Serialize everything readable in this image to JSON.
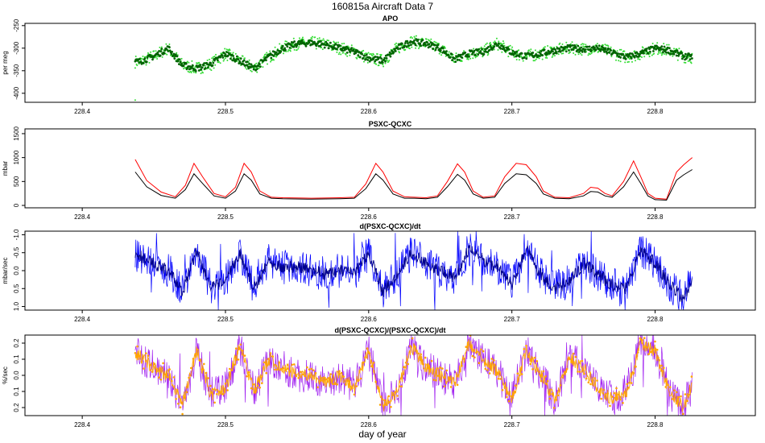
{
  "title": "160815a   Aircraft Data 7",
  "xlabel": "day of year",
  "x_ticks": [
    228.4,
    228.5,
    228.6,
    228.7,
    228.8
  ],
  "x_range": [
    228.36,
    228.87
  ],
  "data_x_range": [
    228.437,
    228.826
  ],
  "colors": {
    "green_light": "#33dd33",
    "green_dark": "#006400",
    "red": "#ff0000",
    "black": "#000000",
    "blue_light": "#0000ff",
    "blue_dark": "#00008b",
    "purple": "#a020f0",
    "orange": "#ffa500"
  },
  "chart_data": [
    {
      "type": "scatter",
      "title": "APO",
      "ylabel": "per meg",
      "ylim": [
        -420,
        -245
      ],
      "y_reversed": false,
      "y_ticks": [
        -400,
        -350,
        -300,
        -250
      ],
      "y_tick_labels": [
        "-400",
        "-350",
        "-300",
        "-250"
      ],
      "grid": false,
      "series": [
        {
          "color": "#33dd33",
          "style": "points",
          "x": [
            228.44,
            228.45,
            228.46,
            228.47,
            228.48,
            228.49,
            228.5,
            228.51,
            228.52,
            228.53,
            228.54,
            228.55,
            228.56,
            228.57,
            228.58,
            228.59,
            228.6,
            228.61,
            228.62,
            228.63,
            228.64,
            228.65,
            228.66,
            228.67,
            228.68,
            228.69,
            228.7,
            228.71,
            228.72,
            228.73,
            228.74,
            228.75,
            228.76,
            228.77,
            228.78,
            228.79,
            228.8,
            228.81,
            228.82,
            228.826
          ],
          "values": [
            -330,
            -318,
            -300,
            -338,
            -345,
            -335,
            -312,
            -328,
            -345,
            -320,
            -300,
            -290,
            -288,
            -292,
            -300,
            -308,
            -322,
            -328,
            -300,
            -285,
            -290,
            -300,
            -325,
            -312,
            -308,
            -290,
            -310,
            -318,
            -312,
            -305,
            -300,
            -302,
            -300,
            -310,
            -320,
            -312,
            -300,
            -305,
            -318,
            -320
          ]
        },
        {
          "color": "#006400",
          "style": "points",
          "x": [
            228.44,
            228.45,
            228.46,
            228.47,
            228.48,
            228.49,
            228.5,
            228.51,
            228.52,
            228.53,
            228.54,
            228.55,
            228.56,
            228.57,
            228.58,
            228.59,
            228.6,
            228.61,
            228.62,
            228.63,
            228.64,
            228.65,
            228.66,
            228.67,
            228.68,
            228.69,
            228.7,
            228.71,
            228.72,
            228.73,
            228.74,
            228.75,
            228.76,
            228.77,
            228.78,
            228.79,
            228.8,
            228.81,
            228.82,
            228.826
          ],
          "values": [
            -330,
            -318,
            -300,
            -338,
            -345,
            -335,
            -312,
            -328,
            -345,
            -320,
            -300,
            -290,
            -288,
            -292,
            -300,
            -308,
            -322,
            -328,
            -300,
            -285,
            -290,
            -300,
            -325,
            -312,
            -308,
            -290,
            -310,
            -318,
            -312,
            -305,
            -300,
            -302,
            -300,
            -310,
            -320,
            -312,
            -300,
            -305,
            -318,
            -320
          ]
        }
      ]
    },
    {
      "type": "line",
      "title": "PSXC-QCXC",
      "ylabel": "mbar",
      "ylim": [
        -50,
        1600
      ],
      "y_reversed": false,
      "y_ticks": [
        0,
        500,
        1000,
        1500
      ],
      "y_tick_labels": [
        "0",
        "500",
        "1000",
        "1500"
      ],
      "grid": false,
      "series": [
        {
          "color": "#ff0000",
          "x": [
            228.437,
            228.445,
            228.455,
            228.465,
            228.472,
            228.478,
            228.484,
            228.492,
            228.5,
            228.507,
            228.513,
            228.518,
            228.524,
            228.532,
            228.54,
            228.56,
            228.58,
            228.59,
            228.598,
            228.605,
            228.61,
            228.617,
            228.625,
            228.632,
            228.64,
            228.648,
            228.655,
            228.662,
            228.667,
            228.673,
            228.68,
            228.688,
            228.695,
            228.703,
            228.71,
            228.717,
            228.722,
            228.73,
            228.74,
            228.75,
            228.755,
            228.76,
            228.765,
            228.77,
            228.778,
            228.785,
            228.79,
            228.795,
            228.8,
            228.808,
            228.815,
            228.82,
            228.826
          ],
          "values": [
            960,
            520,
            280,
            180,
            420,
            880,
            600,
            250,
            180,
            380,
            880,
            700,
            300,
            170,
            160,
            150,
            160,
            170,
            450,
            880,
            700,
            300,
            180,
            170,
            160,
            200,
            500,
            870,
            700,
            300,
            170,
            200,
            600,
            880,
            850,
            600,
            300,
            170,
            160,
            250,
            380,
            360,
            250,
            200,
            500,
            930,
            600,
            250,
            150,
            130,
            700,
            850,
            1000
          ]
        },
        {
          "color": "#000000",
          "x": [
            228.437,
            228.445,
            228.455,
            228.465,
            228.472,
            228.478,
            228.484,
            228.492,
            228.5,
            228.507,
            228.513,
            228.518,
            228.524,
            228.532,
            228.54,
            228.56,
            228.58,
            228.59,
            228.598,
            228.605,
            228.61,
            228.617,
            228.625,
            228.632,
            228.64,
            228.648,
            228.655,
            228.662,
            228.667,
            228.673,
            228.68,
            228.688,
            228.695,
            228.703,
            228.71,
            228.717,
            228.722,
            228.73,
            228.74,
            228.75,
            228.755,
            228.76,
            228.765,
            228.77,
            228.778,
            228.785,
            228.79,
            228.795,
            228.8,
            228.808,
            228.815,
            228.82,
            228.826
          ],
          "values": [
            700,
            390,
            210,
            150,
            330,
            660,
            460,
            200,
            150,
            300,
            660,
            530,
            240,
            150,
            140,
            130,
            140,
            150,
            350,
            660,
            530,
            240,
            150,
            150,
            140,
            170,
            390,
            650,
            530,
            240,
            150,
            170,
            460,
            660,
            640,
            460,
            240,
            150,
            140,
            200,
            290,
            280,
            200,
            170,
            390,
            700,
            460,
            200,
            120,
            110,
            530,
            640,
            750
          ]
        }
      ]
    },
    {
      "type": "line",
      "title": "d(PSXC-QCXC)/dt",
      "ylabel": "mbar/sec",
      "ylim": [
        1.1,
        -1.1
      ],
      "y_reversed": true,
      "y_ticks": [
        -1.0,
        -0.5,
        0.0,
        0.5,
        1.0
      ],
      "y_tick_labels": [
        "-1.0",
        "-0.5",
        "0.0",
        "0.5",
        "1.0"
      ],
      "grid": false,
      "series": [
        {
          "color": "#0000ff",
          "x": [
            228.44,
            228.45,
            228.46,
            228.47,
            228.48,
            228.49,
            228.5,
            228.51,
            228.52,
            228.53,
            228.54,
            228.55,
            228.56,
            228.57,
            228.58,
            228.59,
            228.6,
            228.61,
            228.62,
            228.63,
            228.64,
            228.65,
            228.66,
            228.67,
            228.68,
            228.69,
            228.7,
            228.71,
            228.72,
            228.73,
            228.74,
            228.75,
            228.76,
            228.77,
            228.78,
            228.79,
            228.8,
            228.81,
            228.82,
            228.826
          ],
          "values": [
            -0.4,
            -0.2,
            0.0,
            0.6,
            -0.6,
            0.5,
            0.3,
            -0.5,
            0.5,
            -0.3,
            -0.1,
            -0.1,
            0.0,
            0.1,
            0.0,
            0.1,
            -0.5,
            0.6,
            0.1,
            -0.5,
            -0.2,
            0.0,
            0.2,
            -0.6,
            -0.3,
            -0.1,
            0.4,
            -0.6,
            0.1,
            0.5,
            0.3,
            -0.2,
            0.1,
            0.4,
            0.5,
            -0.6,
            -0.2,
            0.4,
            0.8,
            0.2
          ]
        },
        {
          "color": "#00008b",
          "x": [
            228.44,
            228.45,
            228.46,
            228.47,
            228.48,
            228.49,
            228.5,
            228.51,
            228.52,
            228.53,
            228.54,
            228.55,
            228.56,
            228.57,
            228.58,
            228.59,
            228.6,
            228.61,
            228.62,
            228.63,
            228.64,
            228.65,
            228.66,
            228.67,
            228.68,
            228.69,
            228.7,
            228.71,
            228.72,
            228.73,
            228.74,
            228.75,
            228.76,
            228.77,
            228.78,
            228.79,
            228.8,
            228.81,
            228.82,
            228.826
          ],
          "values": [
            -0.4,
            -0.2,
            0.0,
            0.6,
            -0.6,
            0.5,
            0.3,
            -0.5,
            0.5,
            -0.3,
            -0.1,
            -0.1,
            0.0,
            0.1,
            0.0,
            0.1,
            -0.5,
            0.6,
            0.1,
            -0.5,
            -0.2,
            0.0,
            0.2,
            -0.6,
            -0.3,
            -0.1,
            0.4,
            -0.6,
            0.1,
            0.5,
            0.3,
            -0.2,
            0.1,
            0.4,
            0.5,
            -0.6,
            -0.2,
            0.4,
            0.8,
            0.2
          ]
        }
      ]
    },
    {
      "type": "line",
      "title": "d(PSXC-QCXC)/(PSXC-QCXC)/dt",
      "ylabel": "%/sec",
      "ylim": [
        0.25,
        -0.25
      ],
      "y_reversed": true,
      "y_ticks": [
        -0.2,
        -0.1,
        0.0,
        0.1,
        0.2
      ],
      "y_tick_labels": [
        "0.2",
        "0.1",
        "0.0",
        "0.1",
        "0.2"
      ],
      "grid": false,
      "series": [
        {
          "color": "#a020f0",
          "x": [
            228.44,
            228.45,
            228.46,
            228.47,
            228.48,
            228.49,
            228.5,
            228.51,
            228.52,
            228.53,
            228.54,
            228.55,
            228.56,
            228.57,
            228.58,
            228.59,
            228.6,
            228.61,
            228.62,
            228.63,
            228.64,
            228.65,
            228.66,
            228.67,
            228.68,
            228.69,
            228.7,
            228.71,
            228.72,
            228.73,
            228.74,
            228.75,
            228.76,
            228.77,
            228.78,
            228.79,
            228.8,
            228.81,
            228.82,
            228.826
          ],
          "values": [
            -0.12,
            -0.05,
            0.0,
            0.18,
            -0.15,
            0.12,
            0.08,
            -0.18,
            0.1,
            -0.1,
            -0.05,
            0.0,
            0.0,
            0.05,
            0.0,
            0.08,
            -0.15,
            0.2,
            0.1,
            -0.18,
            -0.05,
            0.0,
            0.05,
            -0.2,
            -0.1,
            -0.02,
            0.15,
            -0.15,
            0.0,
            0.15,
            -0.1,
            -0.05,
            0.08,
            0.15,
            0.1,
            -0.2,
            -0.15,
            0.1,
            0.2,
            0.05
          ]
        },
        {
          "color": "#ffa500",
          "x": [
            228.44,
            228.45,
            228.46,
            228.47,
            228.48,
            228.49,
            228.5,
            228.51,
            228.52,
            228.53,
            228.54,
            228.55,
            228.56,
            228.57,
            228.58,
            228.59,
            228.6,
            228.61,
            228.62,
            228.63,
            228.64,
            228.65,
            228.66,
            228.67,
            228.68,
            228.69,
            228.7,
            228.71,
            228.72,
            228.73,
            228.74,
            228.75,
            228.76,
            228.77,
            228.78,
            228.79,
            228.8,
            228.81,
            228.82,
            228.826
          ],
          "values": [
            -0.12,
            -0.05,
            0.0,
            0.18,
            -0.15,
            0.12,
            0.08,
            -0.18,
            0.1,
            -0.1,
            -0.05,
            0.0,
            0.0,
            0.05,
            0.0,
            0.08,
            -0.15,
            0.2,
            0.1,
            -0.18,
            -0.05,
            0.0,
            0.05,
            -0.2,
            -0.1,
            -0.02,
            0.15,
            -0.15,
            0.0,
            0.15,
            -0.1,
            -0.05,
            0.08,
            0.15,
            0.1,
            -0.2,
            -0.15,
            0.1,
            0.2,
            0.05
          ]
        }
      ]
    }
  ]
}
